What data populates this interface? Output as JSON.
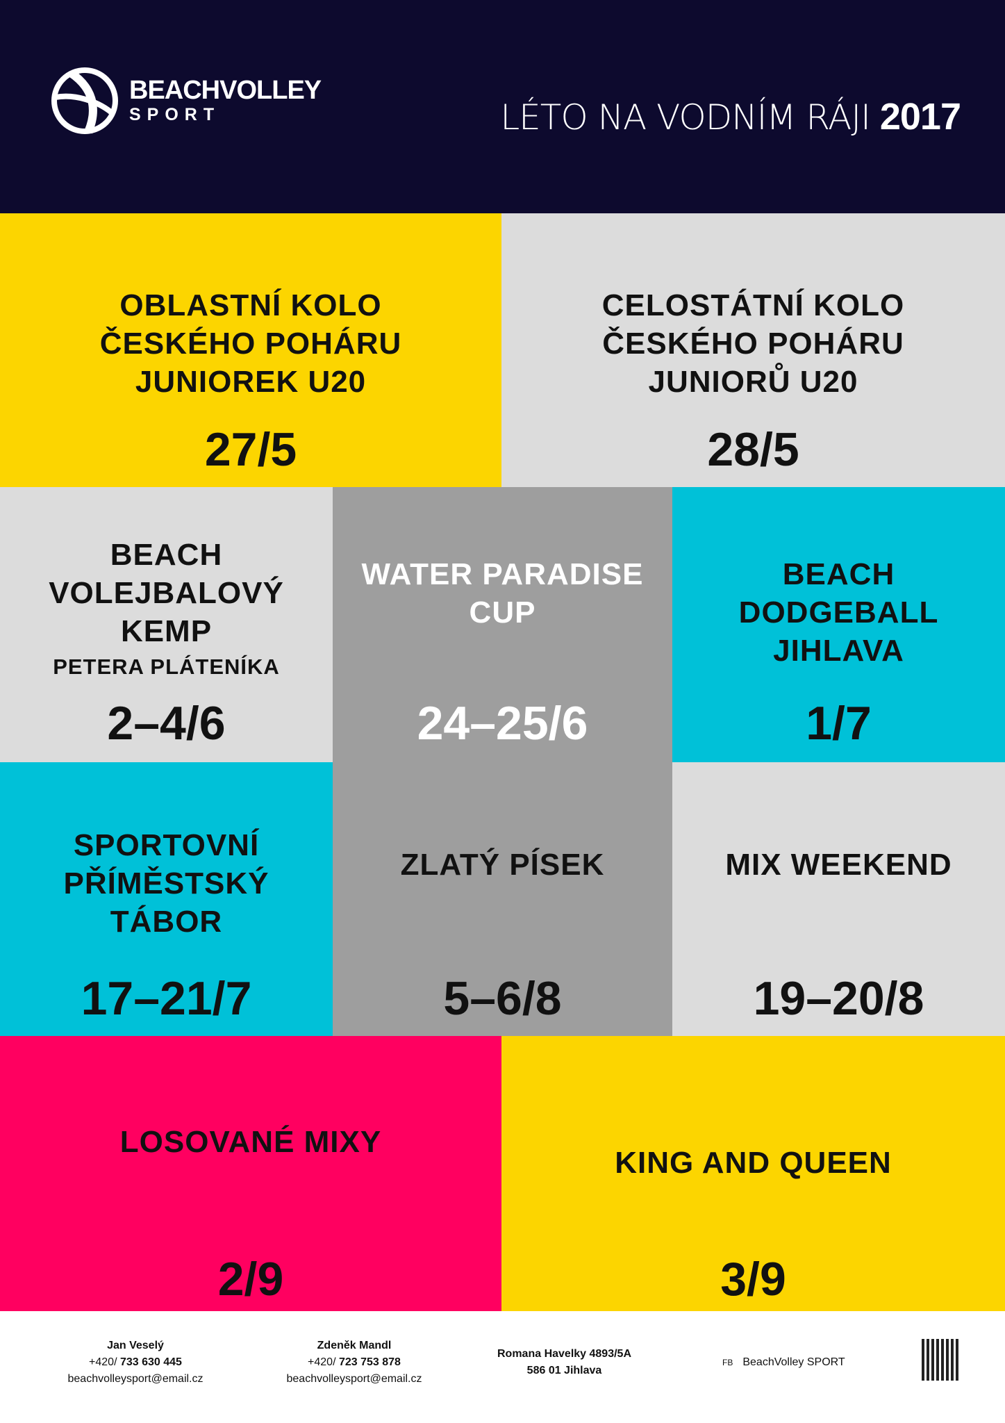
{
  "header": {
    "brand_line1": "BEACHVOLLEY",
    "brand_line2": "SPORT",
    "title_light": "LÉTO NA VODNÍM RÁJI",
    "title_year": "2017",
    "bg": "#0d0a2e"
  },
  "events": [
    {
      "name": "OBLASTNÍ KOLO ČESKÉHO POHÁRU JUNIOREK U20",
      "date": "27/5",
      "color": "#fcd500"
    },
    {
      "name": "CELOSTÁTNÍ KOLO ČESKÉHO POHÁRU JUNIORŮ U20",
      "date": "28/5",
      "color": "#dcdcdc"
    },
    {
      "name": "BEACH VOLEJBALOVÝ KEMP",
      "sub": "PETERA PLÁTENÍKA",
      "date": "2–4/6",
      "color": "#dcdcdc"
    },
    {
      "name": "WATER PARADISE CUP",
      "date": "24–25/6",
      "color": "#9e9e9e"
    },
    {
      "name": "BEACH DODGEBALL JIHLAVA",
      "date": "1/7",
      "color": "#00c1d8"
    },
    {
      "name": "SPORTOVNÍ PŘÍMĚSTSKÝ TÁBOR",
      "date": "17–21/7",
      "color": "#00c1d8"
    },
    {
      "name": "ZLATÝ PÍSEK",
      "date": "5–6/8",
      "color": "#9e9e9e"
    },
    {
      "name": "MIX WEEKEND",
      "date": "19–20/8",
      "color": "#dcdcdc"
    },
    {
      "name": "LOSOVANÉ MIXY",
      "date": "2/9",
      "color": "#ff0060"
    },
    {
      "name": "KING AND QUEEN",
      "date": "3/9",
      "color": "#fcd500"
    }
  ],
  "footer": {
    "contact1": {
      "name": "Jan Veselý",
      "prefix": "+420/",
      "phone": "733 630 445",
      "email": "beachvolleysport@email.cz"
    },
    "contact2": {
      "name": "Zdeněk Mandl",
      "prefix": "+420/",
      "phone": "723 753 878",
      "email": "beachvolleysport@email.cz"
    },
    "address": {
      "line1": "Romana Havelky 4893/5A",
      "line2": "586 01 Jihlava"
    },
    "fb_label": "FB",
    "fb_name": "BeachVolley SPORT"
  }
}
